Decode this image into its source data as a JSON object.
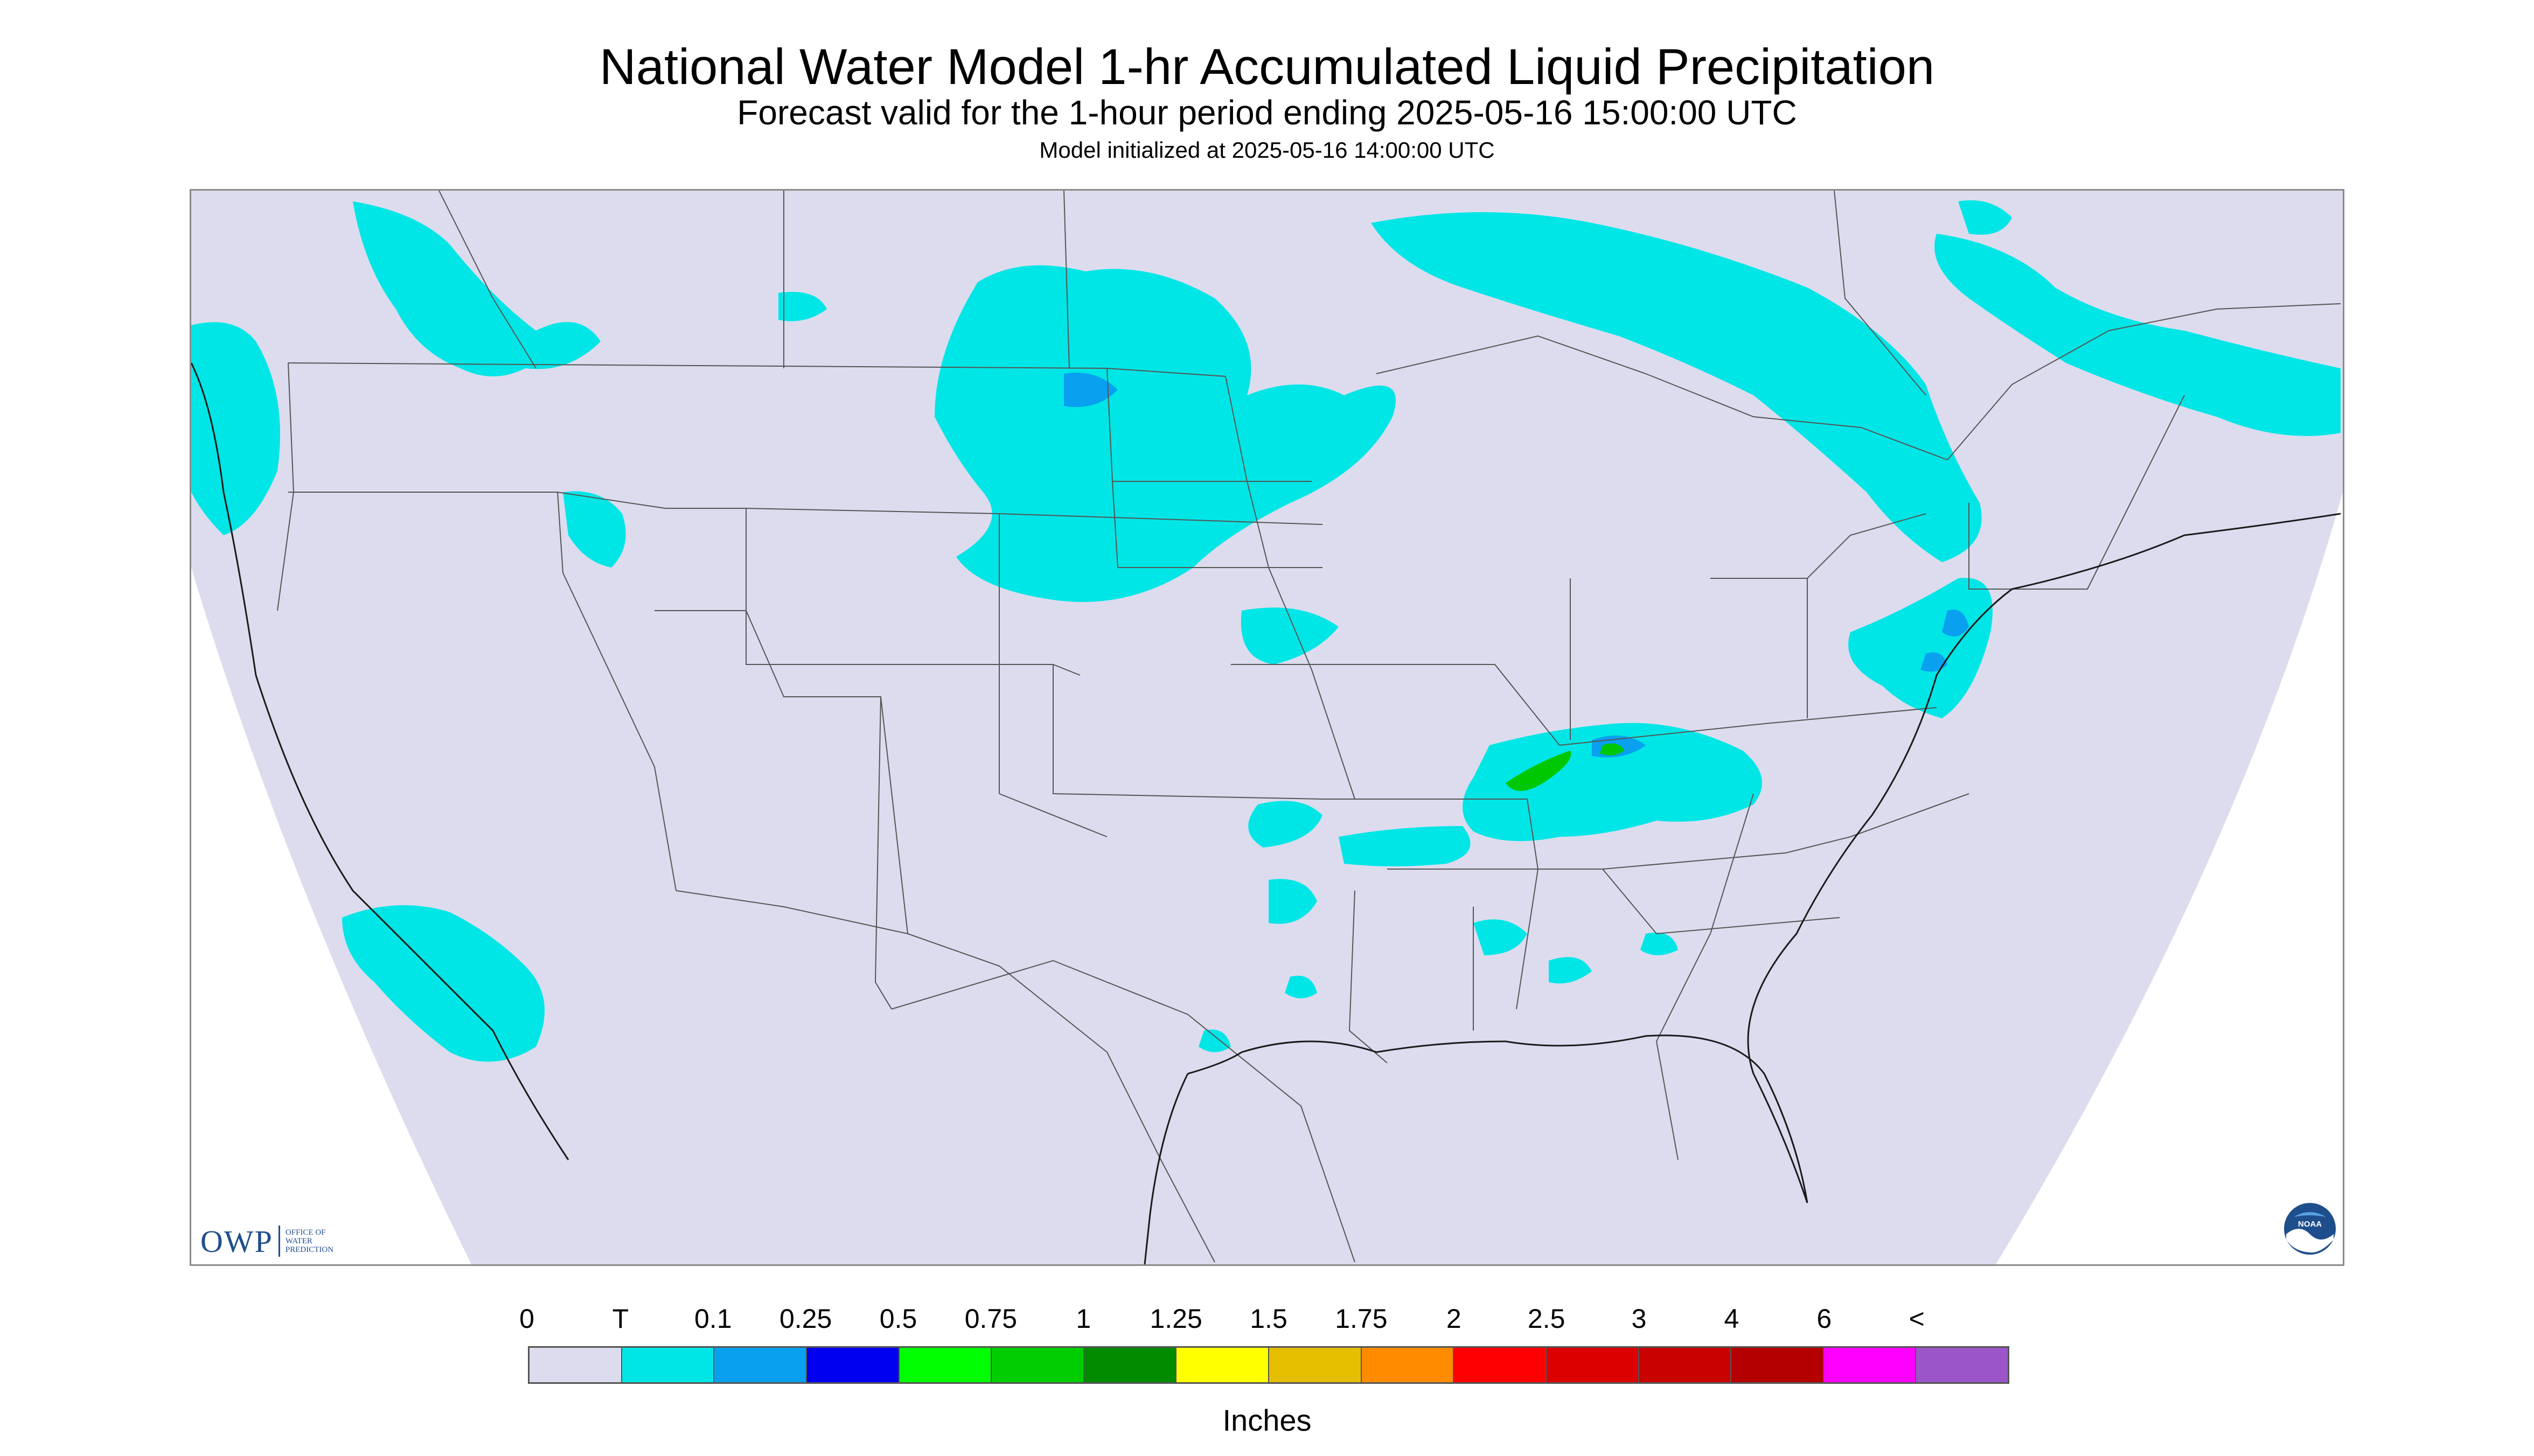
{
  "title": "National Water Model 1-hr Accumulated Liquid Precipitation",
  "subtitle": "Forecast valid for the 1-hour period ending 2025-05-16 15:00:00 UTC",
  "init_text": "Model initialized at 2025-05-16 14:00:00 UTC",
  "units_label": "Inches",
  "owp_logo": {
    "abbr": "OWP",
    "lines": [
      "OFFICE OF",
      "WATER",
      "PREDICTION"
    ]
  },
  "noaa_logo": {
    "text": "NOAA"
  },
  "legend": {
    "tick_labels": [
      "0",
      "T",
      "0.1",
      "0.25",
      "0.5",
      "0.75",
      "1",
      "1.25",
      "1.5",
      "1.75",
      "2",
      "2.5",
      "3",
      "4",
      "6",
      "<"
    ],
    "colors": [
      "#dcdcee",
      "#00e6e6",
      "#0aa0f0",
      "#0000f0",
      "#00ff00",
      "#00cd00",
      "#008b00",
      "#ffff00",
      "#e6be00",
      "#ff8c00",
      "#ff0000",
      "#dc0000",
      "#c80000",
      "#b40000",
      "#ff00ff",
      "#9b55c8"
    ]
  },
  "colors": {
    "map_background": "#dcdcee",
    "outside_domain": "#ffffff",
    "boundary_lines": "#555555",
    "coast_lines": "#1a1a1a"
  }
}
